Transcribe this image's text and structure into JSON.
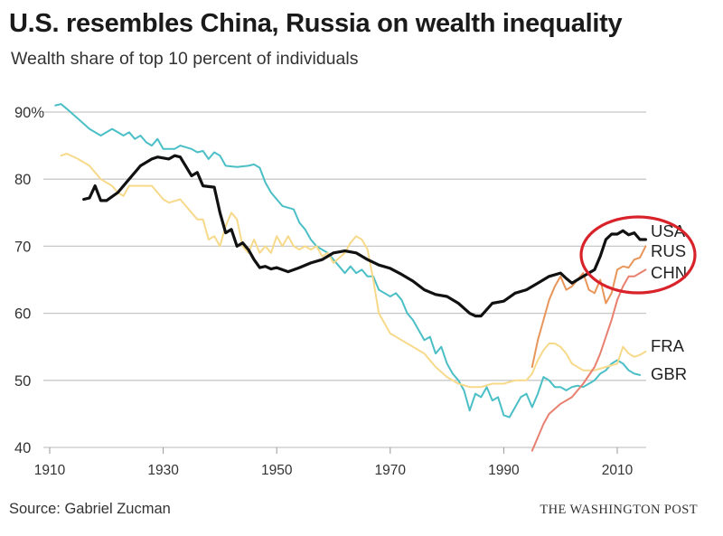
{
  "header": {
    "title": "U.S. resembles China, Russia on wealth inequality",
    "subtitle": "Wealth share of top 10 percent of individuals"
  },
  "footer": {
    "source": "Source: Gabriel Zucman",
    "credit": "THE WASHINGTON POST"
  },
  "chart_data": {
    "type": "line",
    "title": "U.S. resembles China, Russia on wealth inequality",
    "subtitle": "Wealth share of top 10 percent of individuals",
    "xlabel": "",
    "ylabel": "",
    "xlim": [
      1910,
      2015
    ],
    "ylim": [
      40,
      92
    ],
    "x_ticks": [
      1910,
      1930,
      1950,
      1970,
      1990,
      2010
    ],
    "y_ticks": [
      40,
      50,
      60,
      70,
      80,
      90
    ],
    "y_tick_labels": [
      "40",
      "50",
      "60",
      "70",
      "80",
      "90%"
    ],
    "grid": "horizontal",
    "annotation": "red ellipse highlighting USA, RUS, CHN",
    "series": [
      {
        "name": "USA",
        "color": "#111111",
        "points": [
          [
            1916,
            77
          ],
          [
            1917,
            77.2
          ],
          [
            1918,
            79
          ],
          [
            1919,
            76.8
          ],
          [
            1920,
            76.8
          ],
          [
            1922,
            78
          ],
          [
            1924,
            80
          ],
          [
            1926,
            82
          ],
          [
            1928,
            83
          ],
          [
            1929,
            83.3
          ],
          [
            1931,
            83
          ],
          [
            1932,
            83.5
          ],
          [
            1933,
            83.3
          ],
          [
            1935,
            80.5
          ],
          [
            1936,
            81
          ],
          [
            1937,
            79
          ],
          [
            1939,
            78.8
          ],
          [
            1940,
            75
          ],
          [
            1941,
            72
          ],
          [
            1942,
            72.5
          ],
          [
            1943,
            70
          ],
          [
            1944,
            70.5
          ],
          [
            1945,
            69.5
          ],
          [
            1946,
            68
          ],
          [
            1947,
            66.8
          ],
          [
            1948,
            67
          ],
          [
            1949,
            66.6
          ],
          [
            1950,
            66.8
          ],
          [
            1952,
            66.2
          ],
          [
            1954,
            66.8
          ],
          [
            1956,
            67.5
          ],
          [
            1958,
            68
          ],
          [
            1960,
            69
          ],
          [
            1962,
            69.3
          ],
          [
            1964,
            69
          ],
          [
            1966,
            68
          ],
          [
            1968,
            67.2
          ],
          [
            1970,
            66.7
          ],
          [
            1972,
            65.8
          ],
          [
            1974,
            64.8
          ],
          [
            1976,
            63.5
          ],
          [
            1978,
            62.8
          ],
          [
            1980,
            62.5
          ],
          [
            1982,
            61.5
          ],
          [
            1984,
            60
          ],
          [
            1985,
            59.6
          ],
          [
            1986,
            59.6
          ],
          [
            1988,
            61.5
          ],
          [
            1990,
            61.8
          ],
          [
            1992,
            63
          ],
          [
            1994,
            63.5
          ],
          [
            1996,
            64.5
          ],
          [
            1998,
            65.5
          ],
          [
            2000,
            66
          ],
          [
            2001,
            65.2
          ],
          [
            2002,
            64.5
          ],
          [
            2004,
            65.5
          ],
          [
            2006,
            66.5
          ],
          [
            2007,
            68.5
          ],
          [
            2008,
            71
          ],
          [
            2009,
            71.8
          ],
          [
            2010,
            71.8
          ],
          [
            2011,
            72.3
          ],
          [
            2012,
            71.7
          ],
          [
            2013,
            72
          ],
          [
            2014,
            71
          ],
          [
            2015,
            71
          ]
        ]
      },
      {
        "name": "RUS",
        "color": "#e8955a",
        "points": [
          [
            1995,
            52
          ],
          [
            1996,
            56
          ],
          [
            1997,
            59
          ],
          [
            1998,
            62
          ],
          [
            1999,
            64
          ],
          [
            2000,
            65.5
          ],
          [
            2001,
            63.5
          ],
          [
            2002,
            64
          ],
          [
            2003,
            65
          ],
          [
            2004,
            66
          ],
          [
            2005,
            63.5
          ],
          [
            2006,
            63
          ],
          [
            2007,
            65
          ],
          [
            2008,
            61.5
          ],
          [
            2009,
            63
          ],
          [
            2010,
            66.5
          ],
          [
            2011,
            67
          ],
          [
            2012,
            66.8
          ],
          [
            2013,
            68
          ],
          [
            2014,
            68.3
          ],
          [
            2015,
            70
          ]
        ]
      },
      {
        "name": "CHN",
        "color": "#e88070",
        "points": [
          [
            1995,
            39.5
          ],
          [
            1996,
            41.5
          ],
          [
            1997,
            43.5
          ],
          [
            1998,
            45
          ],
          [
            2000,
            46.5
          ],
          [
            2002,
            47.5
          ],
          [
            2004,
            49.5
          ],
          [
            2006,
            52
          ],
          [
            2007,
            54
          ],
          [
            2008,
            56.5
          ],
          [
            2009,
            59
          ],
          [
            2010,
            62
          ],
          [
            2011,
            64
          ],
          [
            2012,
            65.5
          ],
          [
            2013,
            65.5
          ],
          [
            2014,
            66
          ],
          [
            2015,
            66.5
          ]
        ]
      },
      {
        "name": "FRA",
        "color": "#f7d98a",
        "points": [
          [
            1912,
            83.5
          ],
          [
            1913,
            83.8
          ],
          [
            1915,
            83
          ],
          [
            1917,
            82
          ],
          [
            1919,
            80
          ],
          [
            1921,
            79
          ],
          [
            1922,
            78
          ],
          [
            1923,
            77.5
          ],
          [
            1924,
            79
          ],
          [
            1926,
            79
          ],
          [
            1928,
            79
          ],
          [
            1929,
            78
          ],
          [
            1930,
            77
          ],
          [
            1931,
            76.5
          ],
          [
            1933,
            77
          ],
          [
            1935,
            75
          ],
          [
            1936,
            74
          ],
          [
            1937,
            74
          ],
          [
            1938,
            71
          ],
          [
            1939,
            71.5
          ],
          [
            1940,
            70
          ],
          [
            1941,
            73
          ],
          [
            1942,
            75
          ],
          [
            1943,
            74
          ],
          [
            1944,
            70
          ],
          [
            1945,
            69
          ],
          [
            1946,
            71
          ],
          [
            1947,
            69
          ],
          [
            1948,
            70
          ],
          [
            1949,
            69
          ],
          [
            1950,
            71.5
          ],
          [
            1951,
            70
          ],
          [
            1952,
            71.5
          ],
          [
            1953,
            70
          ],
          [
            1954,
            69.5
          ],
          [
            1955,
            70
          ],
          [
            1956,
            69.5
          ],
          [
            1957,
            70
          ],
          [
            1958,
            68.5
          ],
          [
            1959,
            69
          ],
          [
            1960,
            67.5
          ],
          [
            1962,
            69
          ],
          [
            1963,
            70.5
          ],
          [
            1964,
            71.5
          ],
          [
            1965,
            71
          ],
          [
            1966,
            69.5
          ],
          [
            1967,
            65
          ],
          [
            1968,
            60
          ],
          [
            1969,
            58.5
          ],
          [
            1970,
            57
          ],
          [
            1972,
            56
          ],
          [
            1974,
            55
          ],
          [
            1976,
            54
          ],
          [
            1978,
            52
          ],
          [
            1980,
            50.5
          ],
          [
            1982,
            49.5
          ],
          [
            1984,
            49
          ],
          [
            1986,
            49
          ],
          [
            1988,
            49.5
          ],
          [
            1990,
            49.5
          ],
          [
            1992,
            50
          ],
          [
            1994,
            50
          ],
          [
            1995,
            51
          ],
          [
            1996,
            53
          ],
          [
            1997,
            54.5
          ],
          [
            1998,
            55.5
          ],
          [
            1999,
            55.5
          ],
          [
            2000,
            55
          ],
          [
            2001,
            54
          ],
          [
            2002,
            52.5
          ],
          [
            2004,
            51.5
          ],
          [
            2006,
            51.5
          ],
          [
            2008,
            52
          ],
          [
            2010,
            52.5
          ],
          [
            2011,
            55
          ],
          [
            2012,
            54
          ],
          [
            2013,
            53.5
          ],
          [
            2014,
            53.8
          ],
          [
            2015,
            54.3
          ]
        ]
      },
      {
        "name": "GBR",
        "color": "#4bbfc6",
        "points": [
          [
            1911,
            91
          ],
          [
            1912,
            91.2
          ],
          [
            1913,
            90.5
          ],
          [
            1915,
            89
          ],
          [
            1917,
            87.5
          ],
          [
            1919,
            86.5
          ],
          [
            1921,
            87.5
          ],
          [
            1923,
            86.5
          ],
          [
            1924,
            87
          ],
          [
            1925,
            86
          ],
          [
            1926,
            86.5
          ],
          [
            1927,
            85.5
          ],
          [
            1928,
            85
          ],
          [
            1929,
            86
          ],
          [
            1930,
            84.5
          ],
          [
            1931,
            84.5
          ],
          [
            1932,
            84.5
          ],
          [
            1933,
            85
          ],
          [
            1935,
            84.5
          ],
          [
            1936,
            84
          ],
          [
            1937,
            84.2
          ],
          [
            1938,
            83
          ],
          [
            1939,
            84
          ],
          [
            1940,
            83.5
          ],
          [
            1941,
            82
          ],
          [
            1943,
            81.8
          ],
          [
            1945,
            82
          ],
          [
            1946,
            82.2
          ],
          [
            1947,
            81.7
          ],
          [
            1948,
            79.5
          ],
          [
            1949,
            78
          ],
          [
            1950,
            77
          ],
          [
            1951,
            76
          ],
          [
            1953,
            75.5
          ],
          [
            1954,
            73.5
          ],
          [
            1955,
            72.5
          ],
          [
            1956,
            71
          ],
          [
            1957,
            70
          ],
          [
            1958,
            69.5
          ],
          [
            1959,
            69
          ],
          [
            1960,
            68
          ],
          [
            1961,
            67
          ],
          [
            1962,
            66
          ],
          [
            1963,
            67
          ],
          [
            1964,
            66
          ],
          [
            1965,
            66.5
          ],
          [
            1966,
            65.5
          ],
          [
            1967,
            65.5
          ],
          [
            1968,
            63.5
          ],
          [
            1969,
            63
          ],
          [
            1970,
            62.5
          ],
          [
            1971,
            63
          ],
          [
            1972,
            62
          ],
          [
            1973,
            60
          ],
          [
            1974,
            59
          ],
          [
            1975,
            57.5
          ],
          [
            1976,
            56
          ],
          [
            1977,
            56.5
          ],
          [
            1978,
            54
          ],
          [
            1979,
            55
          ],
          [
            1980,
            52.5
          ],
          [
            1981,
            51
          ],
          [
            1982,
            50
          ],
          [
            1983,
            48.5
          ],
          [
            1984,
            45.5
          ],
          [
            1985,
            48
          ],
          [
            1986,
            47.5
          ],
          [
            1987,
            49
          ],
          [
            1988,
            47
          ],
          [
            1989,
            47.5
          ],
          [
            1990,
            44.8
          ],
          [
            1991,
            44.5
          ],
          [
            1992,
            46
          ],
          [
            1993,
            47.5
          ],
          [
            1994,
            48
          ],
          [
            1995,
            46
          ],
          [
            1996,
            48
          ],
          [
            1997,
            50.5
          ],
          [
            1998,
            50
          ],
          [
            1999,
            49
          ],
          [
            2000,
            49
          ],
          [
            2001,
            48.5
          ],
          [
            2002,
            49
          ],
          [
            2003,
            49.2
          ],
          [
            2004,
            49
          ],
          [
            2005,
            49.5
          ],
          [
            2006,
            50
          ],
          [
            2007,
            51
          ],
          [
            2008,
            51.5
          ],
          [
            2009,
            52.5
          ],
          [
            2010,
            53
          ],
          [
            2011,
            52.5
          ],
          [
            2012,
            51.5
          ],
          [
            2013,
            51
          ],
          [
            2014,
            50.8
          ]
        ]
      }
    ]
  }
}
